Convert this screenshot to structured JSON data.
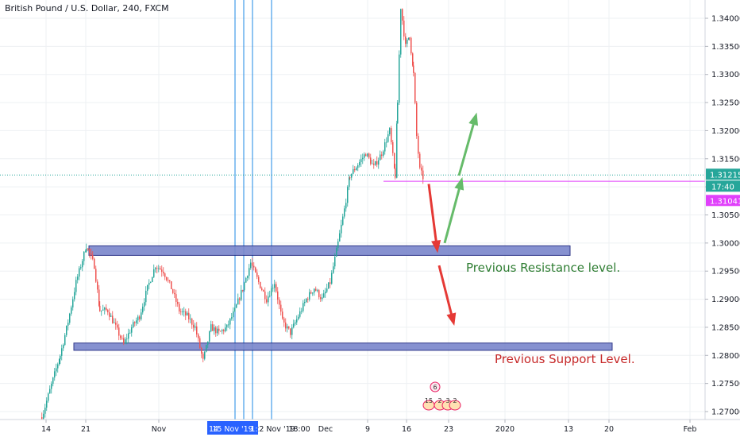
{
  "header": {
    "title": "British Pound / U.S. Dollar, 240, FXCM"
  },
  "chart_data": {
    "type": "candlestick",
    "symbol": "British Pound / U.S. Dollar",
    "interval": "240",
    "source": "FXCM",
    "ylim": [
      1.268,
      1.344
    ],
    "price_ticks": [
      "1.34000",
      "1.33500",
      "1.33000",
      "1.32500",
      "1.32000",
      "1.31500",
      "1.31000",
      "1.30500",
      "1.30000",
      "1.29500",
      "1.29000",
      "1.28500",
      "1.28000",
      "1.27500",
      "1.27000"
    ],
    "time_ticks": [
      {
        "label": "14",
        "x": 58
      },
      {
        "label": "21",
        "x": 108
      },
      {
        "label": "Nov",
        "x": 200
      },
      {
        "label": "9",
        "x": 463
      },
      {
        "label": "16",
        "x": 512
      },
      {
        "label": "23",
        "x": 565
      },
      {
        "label": "2020",
        "x": 636
      },
      {
        "label": "13",
        "x": 716
      },
      {
        "label": "20",
        "x": 767
      },
      {
        "label": "Feb",
        "x": 869
      }
    ],
    "time_highlight": [
      {
        "label": "14",
        "x": 269
      },
      {
        "label": "15 Nov '19",
        "x": 293
      },
      {
        "label": "1:",
        "x": 320
      }
    ],
    "time_extra": [
      {
        "label": "22 Nov '19",
        "x": 346
      },
      {
        "label": "18:00",
        "x": 377
      },
      {
        "label": "Dec",
        "x": 410
      }
    ],
    "last_price": {
      "value": "1.31215",
      "countdown": "17:40"
    },
    "bid_price": {
      "value": "1.31041"
    },
    "current_line_price": 1.3121,
    "horizontal_line_price": 1.311,
    "zones": [
      {
        "name": "resistance-zone",
        "top": 1.2995,
        "bottom": 1.2978
      },
      {
        "name": "support-zone",
        "top": 1.2822,
        "bottom": 1.2809
      }
    ],
    "annotations": [
      {
        "text": "Previous Resistance level.",
        "color": "#2e7d32"
      },
      {
        "text": "Previous Support Level.",
        "color": "#c62828"
      }
    ],
    "event_badges": {
      "top": "6",
      "bottom": [
        "15",
        "2",
        "3",
        "2"
      ]
    },
    "anchors": [
      {
        "x": 52,
        "p": 1.269
      },
      {
        "x": 75,
        "p": 1.28
      },
      {
        "x": 85,
        "p": 1.286
      },
      {
        "x": 95,
        "p": 1.293
      },
      {
        "x": 108,
        "p": 1.2995
      },
      {
        "x": 118,
        "p": 1.296
      },
      {
        "x": 125,
        "p": 1.288
      },
      {
        "x": 135,
        "p": 1.288
      },
      {
        "x": 145,
        "p": 1.285
      },
      {
        "x": 155,
        "p": 1.282
      },
      {
        "x": 165,
        "p": 1.285
      },
      {
        "x": 175,
        "p": 1.287
      },
      {
        "x": 185,
        "p": 1.292
      },
      {
        "x": 195,
        "p": 1.296
      },
      {
        "x": 205,
        "p": 1.295
      },
      {
        "x": 215,
        "p": 1.292
      },
      {
        "x": 225,
        "p": 1.288
      },
      {
        "x": 235,
        "p": 1.287
      },
      {
        "x": 245,
        "p": 1.285
      },
      {
        "x": 255,
        "p": 1.279
      },
      {
        "x": 265,
        "p": 1.285
      },
      {
        "x": 275,
        "p": 1.284
      },
      {
        "x": 285,
        "p": 1.285
      },
      {
        "x": 295,
        "p": 1.288
      },
      {
        "x": 305,
        "p": 1.292
      },
      {
        "x": 315,
        "p": 1.2965
      },
      {
        "x": 325,
        "p": 1.293
      },
      {
        "x": 335,
        "p": 1.29
      },
      {
        "x": 345,
        "p": 1.293
      },
      {
        "x": 355,
        "p": 1.286
      },
      {
        "x": 365,
        "p": 1.284
      },
      {
        "x": 375,
        "p": 1.287
      },
      {
        "x": 385,
        "p": 1.29
      },
      {
        "x": 395,
        "p": 1.292
      },
      {
        "x": 405,
        "p": 1.29
      },
      {
        "x": 415,
        "p": 1.293
      },
      {
        "x": 425,
        "p": 1.3
      },
      {
        "x": 433,
        "p": 1.306
      },
      {
        "x": 440,
        "p": 1.312
      },
      {
        "x": 450,
        "p": 1.314
      },
      {
        "x": 460,
        "p": 1.316
      },
      {
        "x": 470,
        "p": 1.3135
      },
      {
        "x": 480,
        "p": 1.316
      },
      {
        "x": 490,
        "p": 1.32
      },
      {
        "x": 497,
        "p": 1.312
      },
      {
        "x": 500,
        "p": 1.325
      },
      {
        "x": 504,
        "p": 1.342
      },
      {
        "x": 510,
        "p": 1.335
      },
      {
        "x": 515,
        "p": 1.337
      },
      {
        "x": 520,
        "p": 1.33
      },
      {
        "x": 524,
        "p": 1.319
      },
      {
        "x": 528,
        "p": 1.313
      },
      {
        "x": 534,
        "p": 1.311
      }
    ],
    "arrows": [
      {
        "color": "#e53935",
        "x1": 540,
        "p1": 1.3105,
        "x2": 550,
        "p2": 1.2995
      },
      {
        "color": "#66bb6a",
        "x1": 560,
        "p1": 1.3,
        "x2": 580,
        "p2": 1.3105
      },
      {
        "color": "#66bb6a",
        "x1": 578,
        "p1": 1.312,
        "x2": 598,
        "p2": 1.322
      },
      {
        "color": "#e53935",
        "x1": 553,
        "p1": 1.296,
        "x2": 570,
        "p2": 1.2865
      }
    ]
  }
}
